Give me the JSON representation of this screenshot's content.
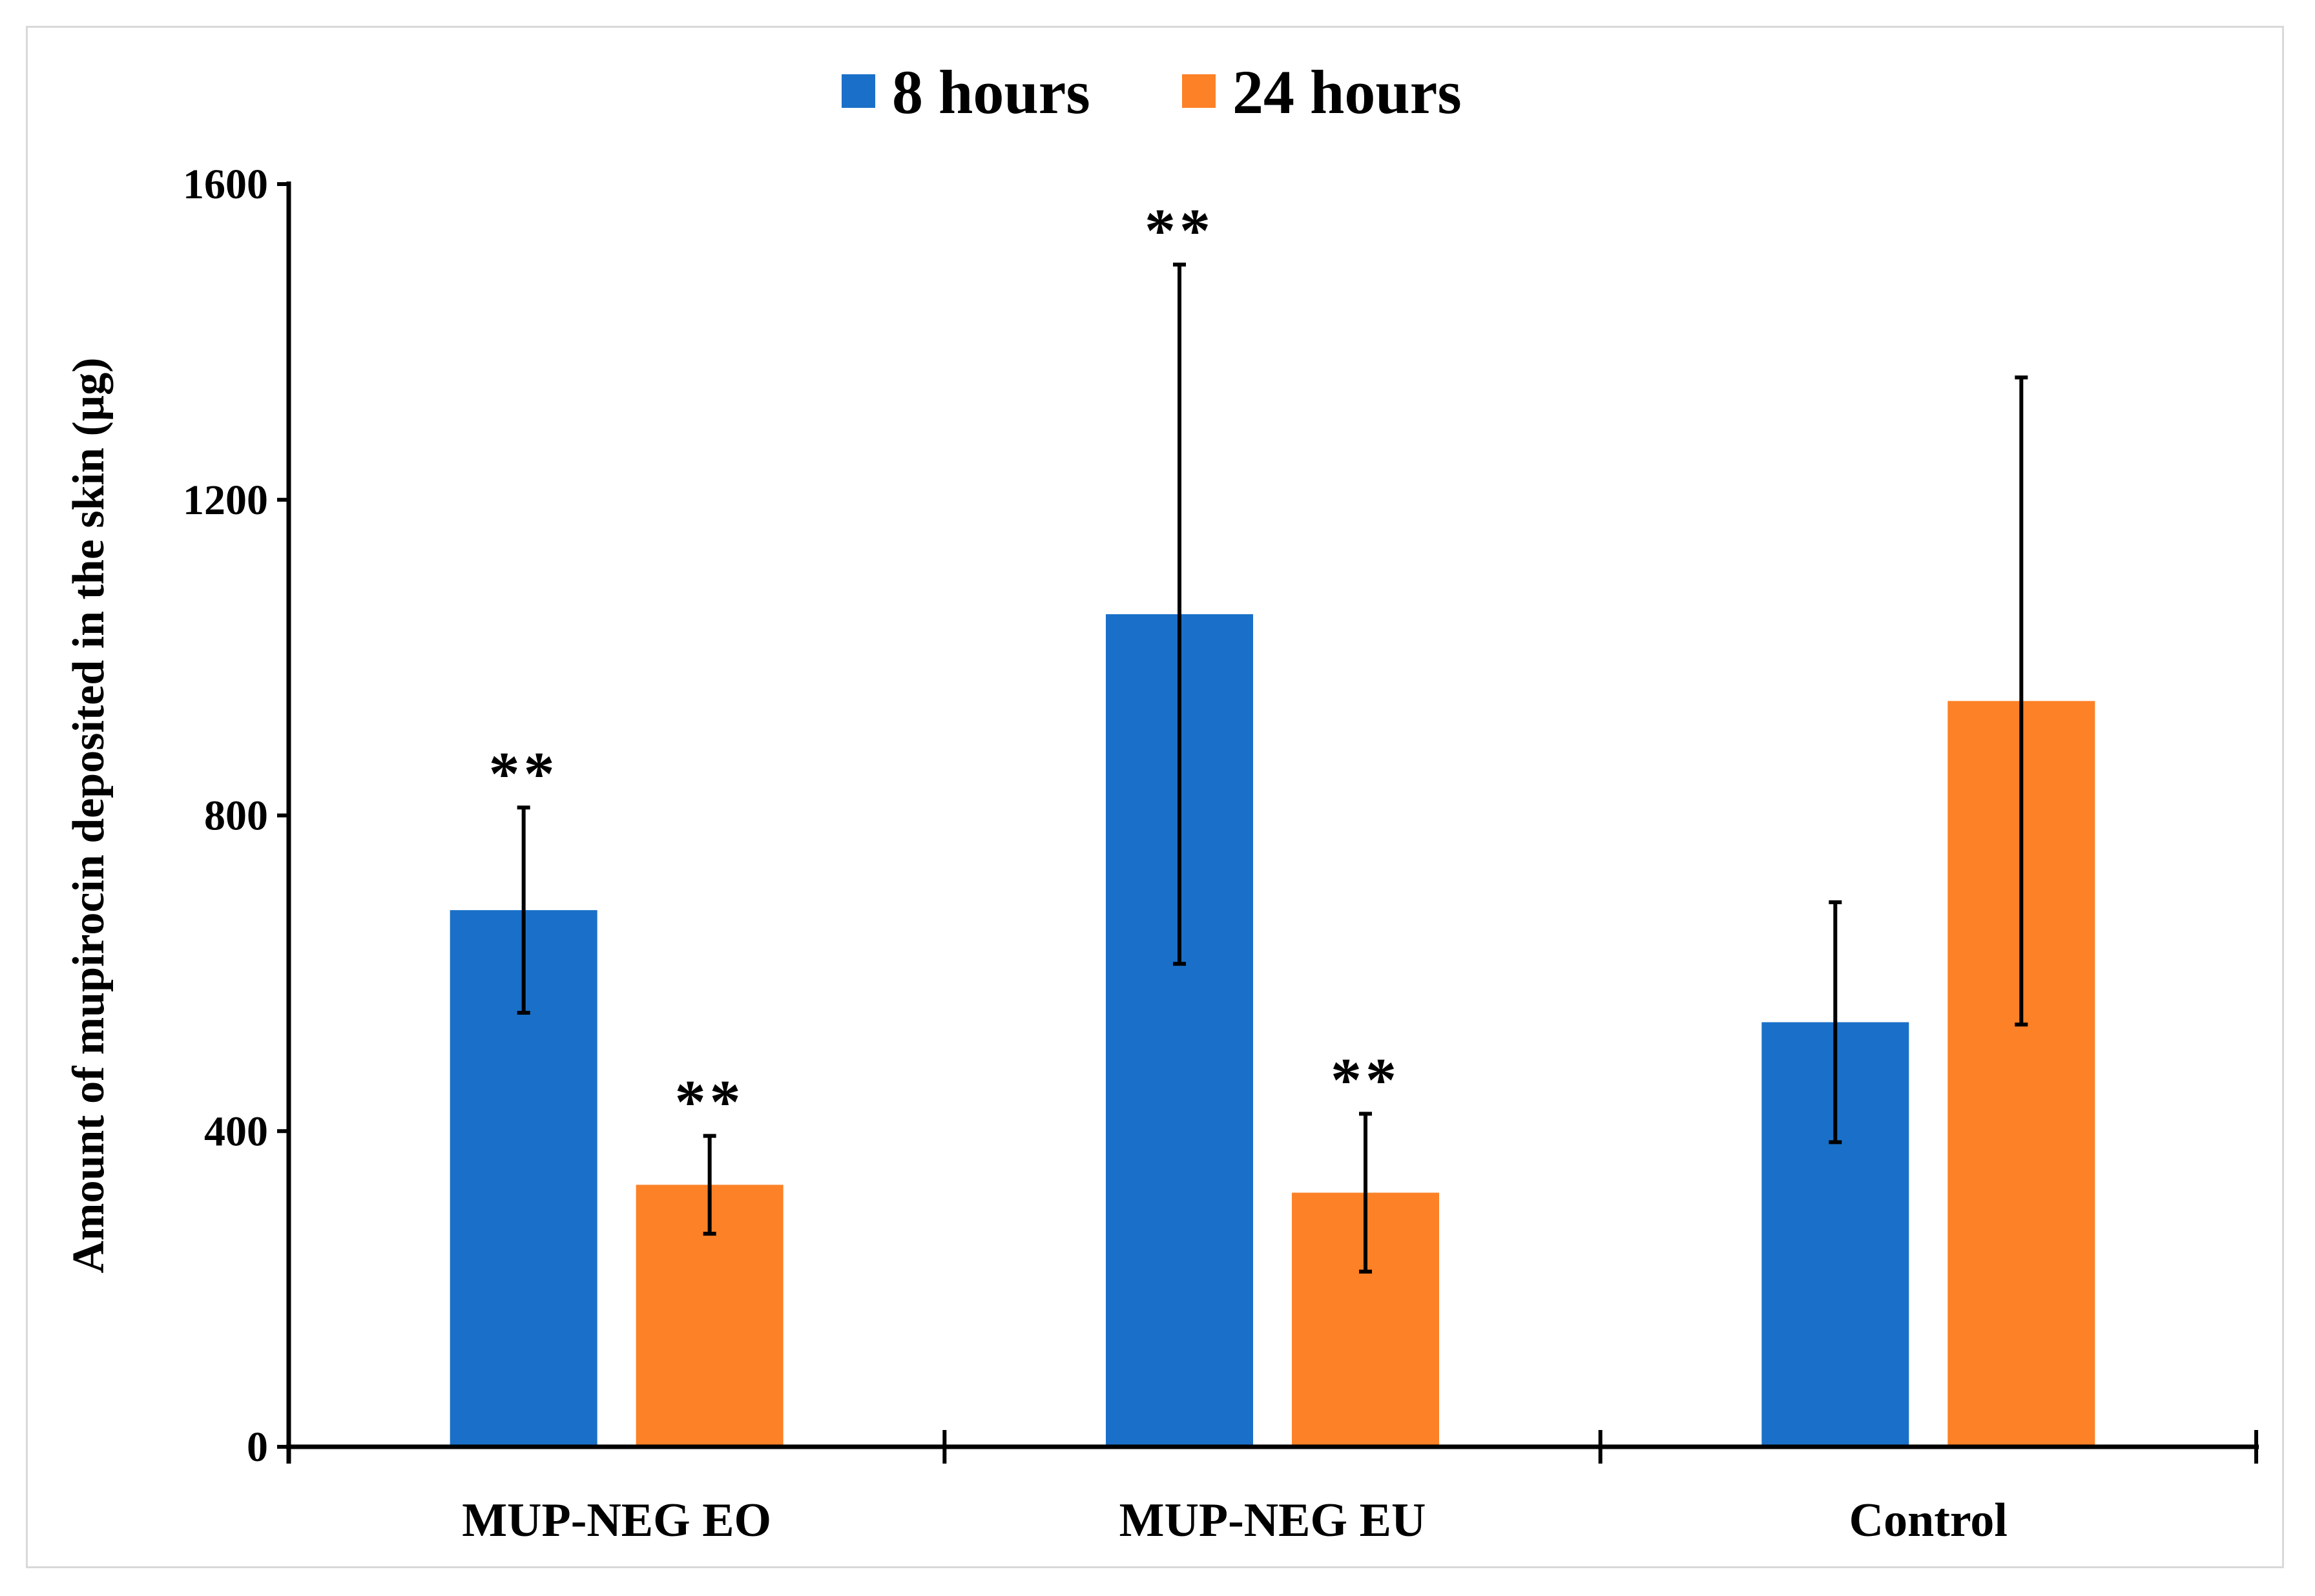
{
  "chart_data": {
    "type": "bar",
    "title": "",
    "xlabel": "",
    "ylabel": "Amount of mupirocin deposited in the skin (µg)",
    "ylim": [
      0,
      1600
    ],
    "yticks": [
      0,
      400,
      800,
      1200,
      1600
    ],
    "grid": false,
    "legend_position": "top-center",
    "categories": [
      "MUP-NEG EO",
      "MUP-NEG EU",
      "Control"
    ],
    "series": [
      {
        "name": "8 hours",
        "color": "#1a70c8",
        "values": [
          680,
          1055,
          538
        ],
        "errors": [
          130,
          443,
          152
        ],
        "significance": [
          "**",
          "**",
          ""
        ]
      },
      {
        "name": "24 hours",
        "color": "#fd8127",
        "values": [
          332,
          322,
          945
        ],
        "errors": [
          62,
          100,
          410
        ],
        "significance": [
          "**",
          "**",
          ""
        ]
      }
    ]
  }
}
